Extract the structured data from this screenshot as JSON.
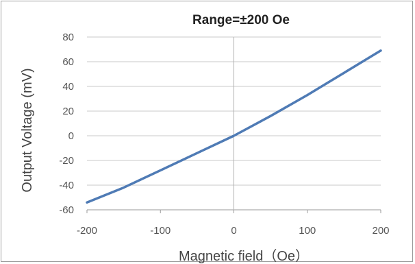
{
  "chart_data": {
    "type": "line",
    "title": "Range=±200 Oe",
    "xlabel": "Magnetic field（Oe）",
    "ylabel": "Output Voltage (mV)",
    "xlim": [
      -200,
      200
    ],
    "ylim": [
      -60,
      80
    ],
    "xticks": [
      -200,
      -100,
      0,
      100,
      200
    ],
    "yticks": [
      -60,
      -40,
      -20,
      0,
      20,
      40,
      60,
      80
    ],
    "grid": "horizontal",
    "legend": "none",
    "line_color": "#4f7bb5",
    "series": [
      {
        "x": [
          -200,
          -150,
          -100,
          -50,
          0,
          50,
          100,
          150,
          200
        ],
        "y": [
          -54,
          -42,
          -28,
          -14,
          0,
          16,
          33,
          51,
          69
        ]
      }
    ]
  }
}
